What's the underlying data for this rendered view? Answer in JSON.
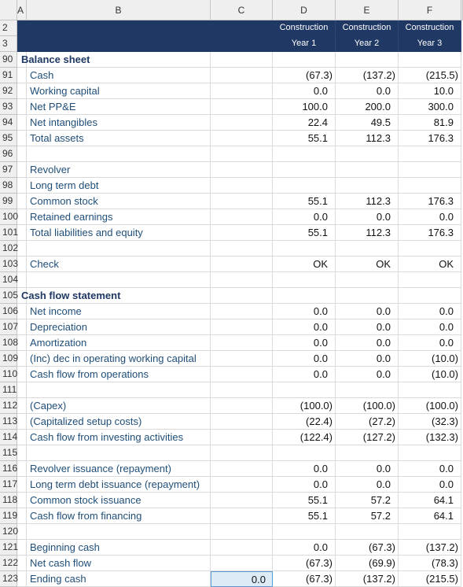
{
  "columns": [
    "A",
    "B",
    "C",
    "D",
    "E",
    "F"
  ],
  "header_rows": [
    {
      "row": "2",
      "cells": [
        "Construction",
        "Construction",
        "Construction"
      ]
    },
    {
      "row": "3",
      "cells": [
        "Year 1",
        "Year 2",
        "Year 3"
      ]
    }
  ],
  "rows": [
    {
      "row": "90",
      "label": "Balance sheet"
    },
    {
      "row": "91",
      "label": "Cash",
      "values": [
        "(67.3)",
        "(137.2)",
        "(215.5)"
      ]
    },
    {
      "row": "92",
      "label": "Working capital",
      "values": [
        "0.0",
        "0.0",
        "10.0"
      ]
    },
    {
      "row": "93",
      "label": "Net PP&E",
      "values": [
        "100.0",
        "200.0",
        "300.0"
      ]
    },
    {
      "row": "94",
      "label": "Net intangibles",
      "values": [
        "22.4",
        "49.5",
        "81.9"
      ]
    },
    {
      "row": "95",
      "label": "Total assets",
      "values": [
        "55.1",
        "112.3",
        "176.3"
      ]
    },
    {
      "row": "96"
    },
    {
      "row": "97",
      "label": "Revolver"
    },
    {
      "row": "98",
      "label": "Long term debt"
    },
    {
      "row": "99",
      "label": "Common stock",
      "values": [
        "55.1",
        "112.3",
        "176.3"
      ]
    },
    {
      "row": "100",
      "label": "Retained earnings",
      "values": [
        "0.0",
        "0.0",
        "0.0"
      ]
    },
    {
      "row": "101",
      "label": "Total liabilities and equity",
      "values": [
        "55.1",
        "112.3",
        "176.3"
      ]
    },
    {
      "row": "102"
    },
    {
      "row": "103",
      "label": "Check",
      "values": [
        "OK",
        "OK",
        "OK"
      ]
    },
    {
      "row": "104"
    },
    {
      "row": "105",
      "label": "Cash flow statement"
    },
    {
      "row": "106",
      "label": "Net income",
      "values": [
        "0.0",
        "0.0",
        "0.0"
      ]
    },
    {
      "row": "107",
      "label": "Depreciation",
      "values": [
        "0.0",
        "0.0",
        "0.0"
      ]
    },
    {
      "row": "108",
      "label": "Amortization",
      "values": [
        "0.0",
        "0.0",
        "0.0"
      ]
    },
    {
      "row": "109",
      "label": "(Inc) dec in operating working capital",
      "values": [
        "0.0",
        "0.0",
        "(10.0)"
      ]
    },
    {
      "row": "110",
      "label": "Cash flow from operations",
      "values": [
        "0.0",
        "0.0",
        "(10.0)"
      ]
    },
    {
      "row": "111"
    },
    {
      "row": "112",
      "label": "(Capex)",
      "values": [
        "(100.0)",
        "(100.0)",
        "(100.0)"
      ]
    },
    {
      "row": "113",
      "label": "(Capitalized setup costs)",
      "values": [
        "(22.4)",
        "(27.2)",
        "(32.3)"
      ]
    },
    {
      "row": "114",
      "label": "Cash flow from investing activities",
      "values": [
        "(122.4)",
        "(127.2)",
        "(132.3)"
      ]
    },
    {
      "row": "115"
    },
    {
      "row": "116",
      "label": "Revolver issuance (repayment)",
      "values": [
        "0.0",
        "0.0",
        "0.0"
      ]
    },
    {
      "row": "117",
      "label": "Long term debt issuance (repayment)",
      "values": [
        "0.0",
        "0.0",
        "0.0"
      ]
    },
    {
      "row": "118",
      "label": "Common stock issuance",
      "values": [
        "55.1",
        "57.2",
        "64.1"
      ]
    },
    {
      "row": "119",
      "label": "Cash flow from financing",
      "values": [
        "55.1",
        "57.2",
        "64.1"
      ]
    },
    {
      "row": "120"
    },
    {
      "row": "121",
      "label": "Beginning cash",
      "values": [
        "0.0",
        "(67.3)",
        "(137.2)"
      ]
    },
    {
      "row": "122",
      "label": "Net cash flow",
      "values": [
        "(67.3)",
        "(69.9)",
        "(78.3)"
      ]
    },
    {
      "row": "123",
      "label": "Ending cash",
      "c": "0.0",
      "values": [
        "(67.3)",
        "(137.2)",
        "(215.5)"
      ]
    }
  ]
}
